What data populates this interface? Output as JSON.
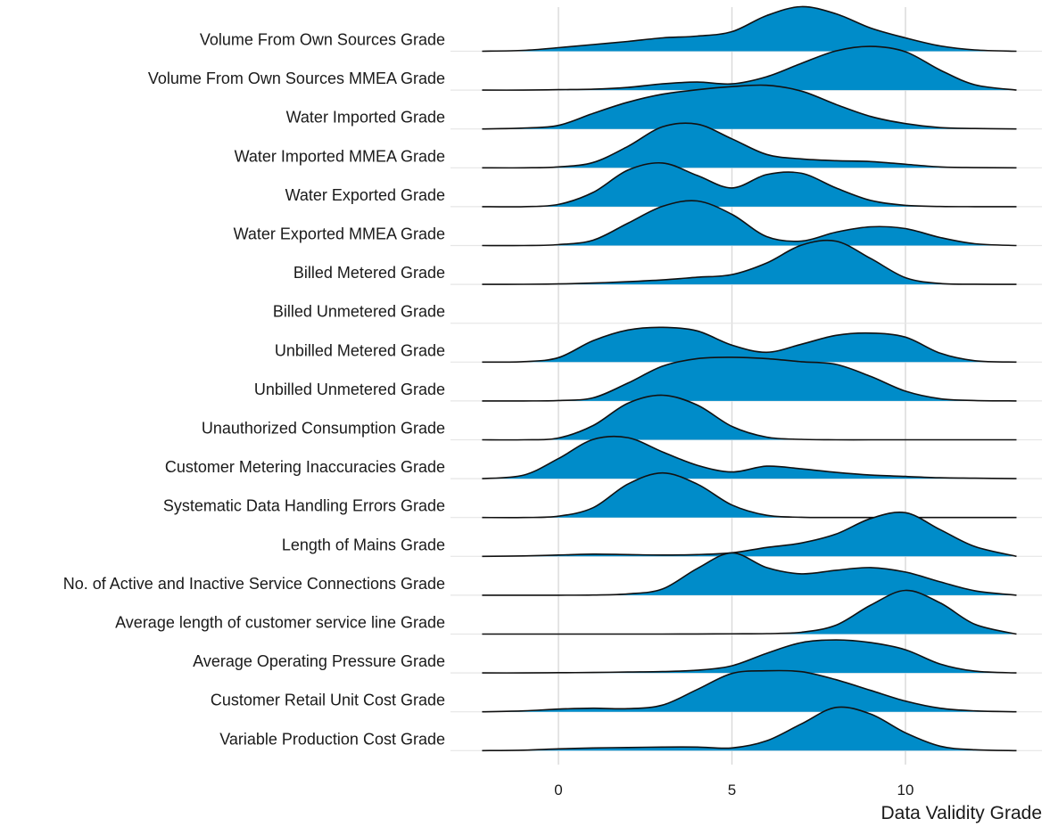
{
  "chart_data": {
    "type": "ridgeline",
    "xlabel": "Data Validity Grade",
    "x_ticks": [
      0,
      5,
      10
    ],
    "xlim": [
      -2.2,
      13.2
    ],
    "grid": true,
    "fill_color": "#008cc9",
    "line_color": "#111111",
    "density_x": [
      -2.2,
      -1,
      0,
      1,
      2,
      3,
      4,
      5,
      6,
      7,
      8,
      9,
      10,
      11,
      12,
      13.2
    ],
    "series": [
      {
        "name": "Volume From Own Sources Grade",
        "values": [
          0,
          0.02,
          0.08,
          0.15,
          0.22,
          0.3,
          0.34,
          0.44,
          0.8,
          1.0,
          0.84,
          0.52,
          0.3,
          0.12,
          0.03,
          0
        ]
      },
      {
        "name": "Volume From Own Sources MMEA Grade",
        "values": [
          0,
          0,
          0.01,
          0.02,
          0.06,
          0.14,
          0.18,
          0.14,
          0.3,
          0.6,
          0.88,
          0.98,
          0.86,
          0.45,
          0.12,
          0
        ]
      },
      {
        "name": "Water Imported Grade",
        "values": [
          0,
          0.02,
          0.08,
          0.35,
          0.6,
          0.78,
          0.88,
          0.95,
          0.98,
          0.85,
          0.55,
          0.28,
          0.12,
          0.03,
          0.01,
          0
        ]
      },
      {
        "name": "Water Imported MMEA Grade",
        "values": [
          0,
          0,
          0.02,
          0.12,
          0.48,
          0.92,
          0.98,
          0.65,
          0.3,
          0.2,
          0.16,
          0.14,
          0.08,
          0.02,
          0.005,
          0
        ]
      },
      {
        "name": "Water Exported Grade",
        "values": [
          0,
          0,
          0.05,
          0.32,
          0.82,
          0.98,
          0.7,
          0.42,
          0.72,
          0.75,
          0.42,
          0.14,
          0.03,
          0.005,
          0,
          0
        ]
      },
      {
        "name": "Water Exported MMEA Grade",
        "values": [
          0,
          0,
          0.02,
          0.12,
          0.5,
          0.88,
          1.0,
          0.7,
          0.2,
          0.1,
          0.3,
          0.42,
          0.38,
          0.18,
          0.04,
          0
        ]
      },
      {
        "name": "Billed Metered Grade",
        "values": [
          0,
          0.002,
          0.01,
          0.03,
          0.06,
          0.1,
          0.16,
          0.22,
          0.48,
          0.88,
          0.97,
          0.58,
          0.15,
          0.02,
          0.003,
          0
        ]
      },
      {
        "name": "Billed Unmetered Grade",
        "values": []
      },
      {
        "name": "Unbilled Metered Grade",
        "values": [
          0,
          0.01,
          0.1,
          0.48,
          0.72,
          0.78,
          0.7,
          0.38,
          0.22,
          0.4,
          0.6,
          0.65,
          0.56,
          0.2,
          0.03,
          0
        ]
      },
      {
        "name": "Unbilled Unmetered Grade",
        "values": [
          0,
          0,
          0.01,
          0.07,
          0.4,
          0.78,
          0.95,
          0.98,
          0.95,
          0.88,
          0.82,
          0.55,
          0.22,
          0.05,
          0.01,
          0
        ]
      },
      {
        "name": "Unauthorized Consumption Grade",
        "values": [
          0,
          0,
          0.04,
          0.32,
          0.82,
          1.0,
          0.78,
          0.3,
          0.06,
          0.01,
          0,
          0,
          0,
          0,
          0,
          0
        ]
      },
      {
        "name": "Customer Metering Inaccuracies Grade",
        "values": [
          0,
          0.08,
          0.45,
          0.88,
          0.92,
          0.6,
          0.3,
          0.15,
          0.28,
          0.22,
          0.14,
          0.08,
          0.05,
          0.02,
          0.01,
          0
        ]
      },
      {
        "name": "Systematic Data Handling Errors Grade",
        "values": [
          0,
          0,
          0.03,
          0.22,
          0.75,
          1.0,
          0.75,
          0.28,
          0.05,
          0.005,
          0,
          0,
          0,
          0,
          0,
          0
        ]
      },
      {
        "name": "Length of Mains Grade",
        "values": [
          0,
          0.01,
          0.03,
          0.05,
          0.04,
          0.03,
          0.04,
          0.08,
          0.2,
          0.3,
          0.5,
          0.85,
          0.98,
          0.6,
          0.22,
          0
        ]
      },
      {
        "name": "No. of Active and Inactive Service Connections Grade",
        "values": [
          0,
          0,
          0,
          0.005,
          0.03,
          0.14,
          0.6,
          0.95,
          0.62,
          0.48,
          0.56,
          0.62,
          0.52,
          0.3,
          0.1,
          0
        ]
      },
      {
        "name": "Average length of customer service line Grade",
        "values": [
          0,
          0,
          0,
          0,
          0,
          0,
          0.002,
          0.005,
          0.01,
          0.04,
          0.2,
          0.65,
          0.98,
          0.7,
          0.22,
          0
        ]
      },
      {
        "name": "Average Operating Pressure Grade",
        "values": [
          0,
          0,
          0.005,
          0.01,
          0.02,
          0.03,
          0.06,
          0.16,
          0.44,
          0.68,
          0.74,
          0.68,
          0.52,
          0.2,
          0.04,
          0
        ]
      },
      {
        "name": "Customer Retail Unit Cost Grade",
        "values": [
          0,
          0.02,
          0.06,
          0.08,
          0.07,
          0.15,
          0.5,
          0.86,
          0.92,
          0.9,
          0.72,
          0.48,
          0.24,
          0.08,
          0.02,
          0
        ]
      },
      {
        "name": "Variable Production Cost Grade",
        "values": [
          0,
          0.01,
          0.04,
          0.06,
          0.07,
          0.08,
          0.08,
          0.06,
          0.22,
          0.6,
          0.97,
          0.82,
          0.4,
          0.1,
          0.02,
          0
        ]
      }
    ]
  }
}
